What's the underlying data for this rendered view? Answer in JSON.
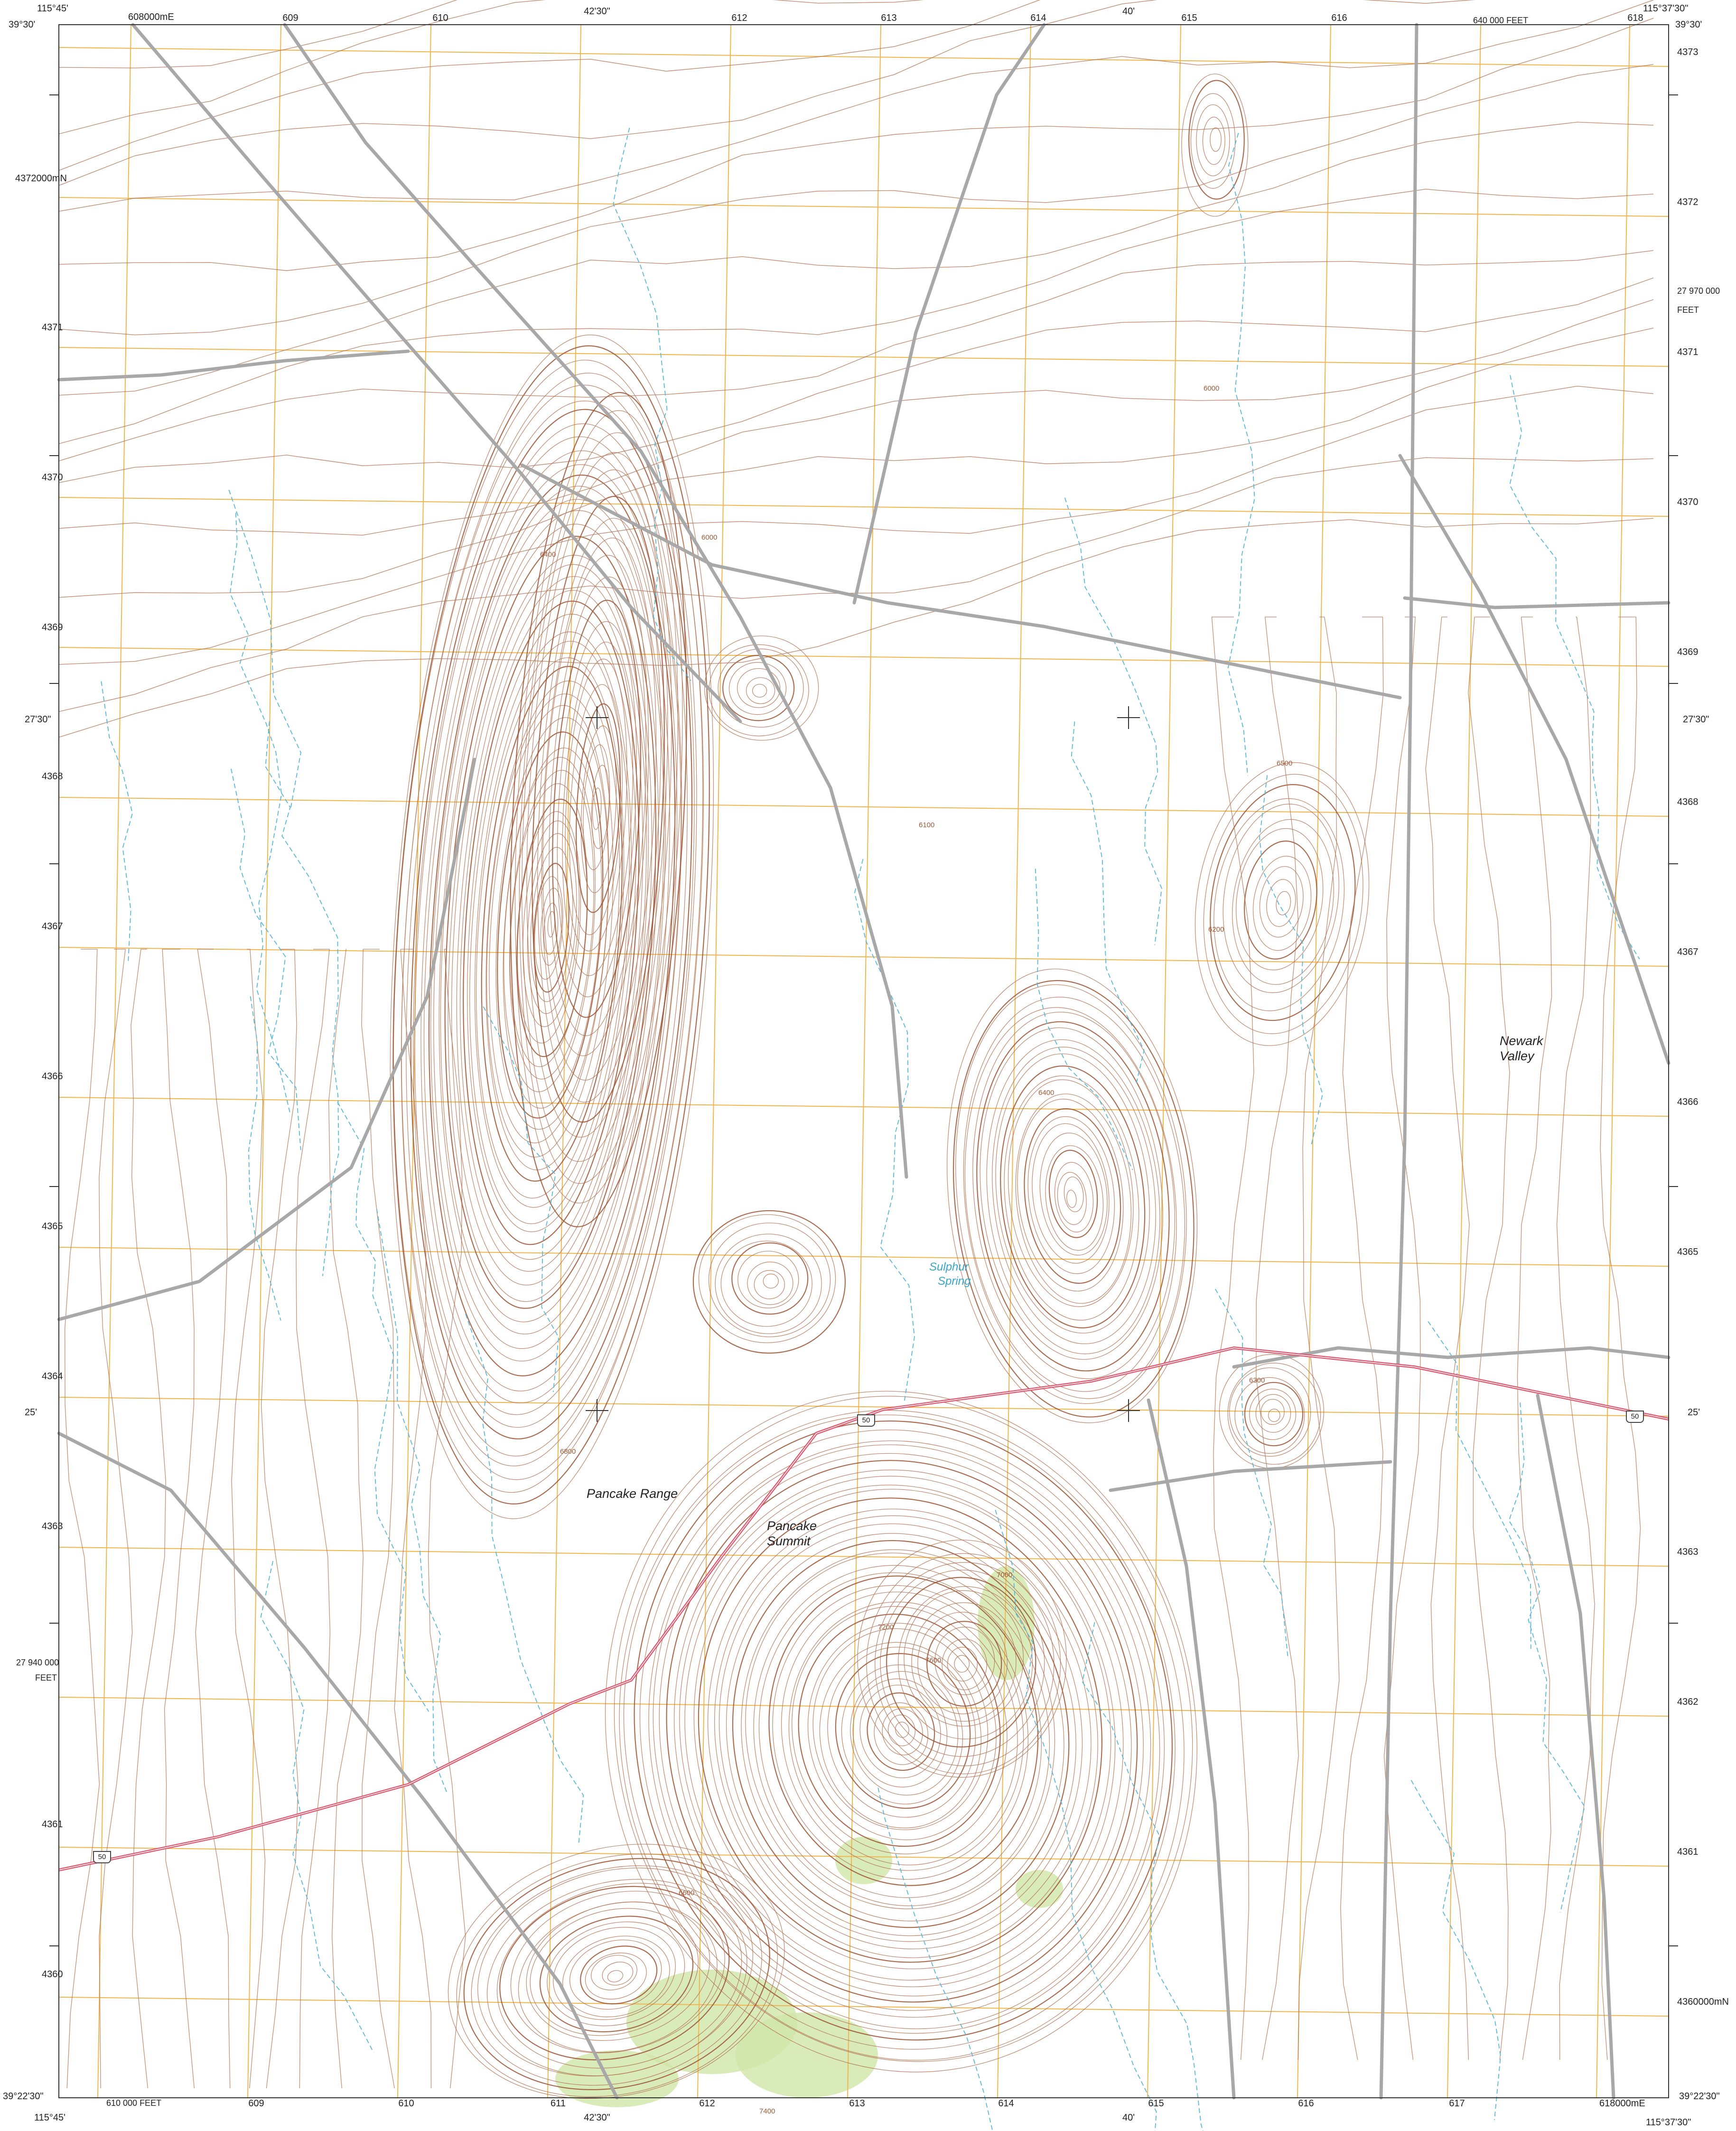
{
  "map": {
    "corners": {
      "nw_lon": "115°45'",
      "nw_lat": "39°30'",
      "ne_lon": "115°37'30\"",
      "ne_lat": "39°30'",
      "sw_lat": "39°22'30\"",
      "sw_lon": "115°45'",
      "se_lat": "39°22'30\"",
      "se_lon": "115°37'30\""
    },
    "top_labels": {
      "easting_first": "608000mE",
      "e09": "609",
      "e10": "610",
      "lon_mid": "42'30\"",
      "e12": "612",
      "e13": "613",
      "e14": "614",
      "lon_40": "40'",
      "e15": "615",
      "e16": "616",
      "feet": "640 000 FEET",
      "e18": "618"
    },
    "bottom_labels": {
      "feet": "610 000 FEET",
      "e09": "609",
      "e10": "610",
      "e11": "611",
      "lon_mid": "42'30\"",
      "e12": "612",
      "e13": "613",
      "e14": "614",
      "lon_40": "40'",
      "e15": "615",
      "e16": "616",
      "e17": "617",
      "easting_last": "618000mE"
    },
    "left_labels": {
      "n72": "4372000mN",
      "n71": "4371",
      "n70": "4370",
      "n69": "4369",
      "lat_2730": "27'30\"",
      "n68": "4368",
      "n67": "4367",
      "n66": "4366",
      "n65": "4365",
      "n64": "4364",
      "lat_25": "25'",
      "n63": "4363",
      "feet_a": "27 940 000",
      "feet_b": "FEET",
      "n61": "4361",
      "n60": "4360"
    },
    "right_labels": {
      "n73": "4373",
      "n72": "4372",
      "feet_a": "27 970 000",
      "feet_b": "FEET",
      "n71": "4371",
      "n70": "4370",
      "n69": "4369",
      "lat_2730": "27'30\"",
      "n68": "4368",
      "n67": "4367",
      "n66": "4366",
      "n65": "4365",
      "lat_25": "25'",
      "n63": "4363",
      "n62": "4362",
      "n61": "4361",
      "n60": "4360000mN"
    },
    "place_names": {
      "pancake_range": "Pancake Range",
      "pancake_summit_1": "Pancake",
      "pancake_summit_2": "Summit",
      "newark_valley_1": "Newark",
      "newark_valley_2": "Valley",
      "sulphur_1": "Sulphur",
      "sulphur_2": "Spring"
    },
    "route_shield": "50",
    "contour_labels": [
      "6400",
      "6800",
      "7200",
      "7600",
      "6000",
      "6200",
      "6100",
      "6500",
      "7000",
      "6600",
      "7400",
      "6300"
    ],
    "colors": {
      "contour": "#b07050",
      "index_contour": "#9a5434",
      "grid": "#f0b650",
      "stream": "#5ab7d8",
      "road": "#a8a8a8",
      "highway": "#e0526a",
      "vegetation": "#cfe6a8",
      "frame": "#333333"
    }
  }
}
